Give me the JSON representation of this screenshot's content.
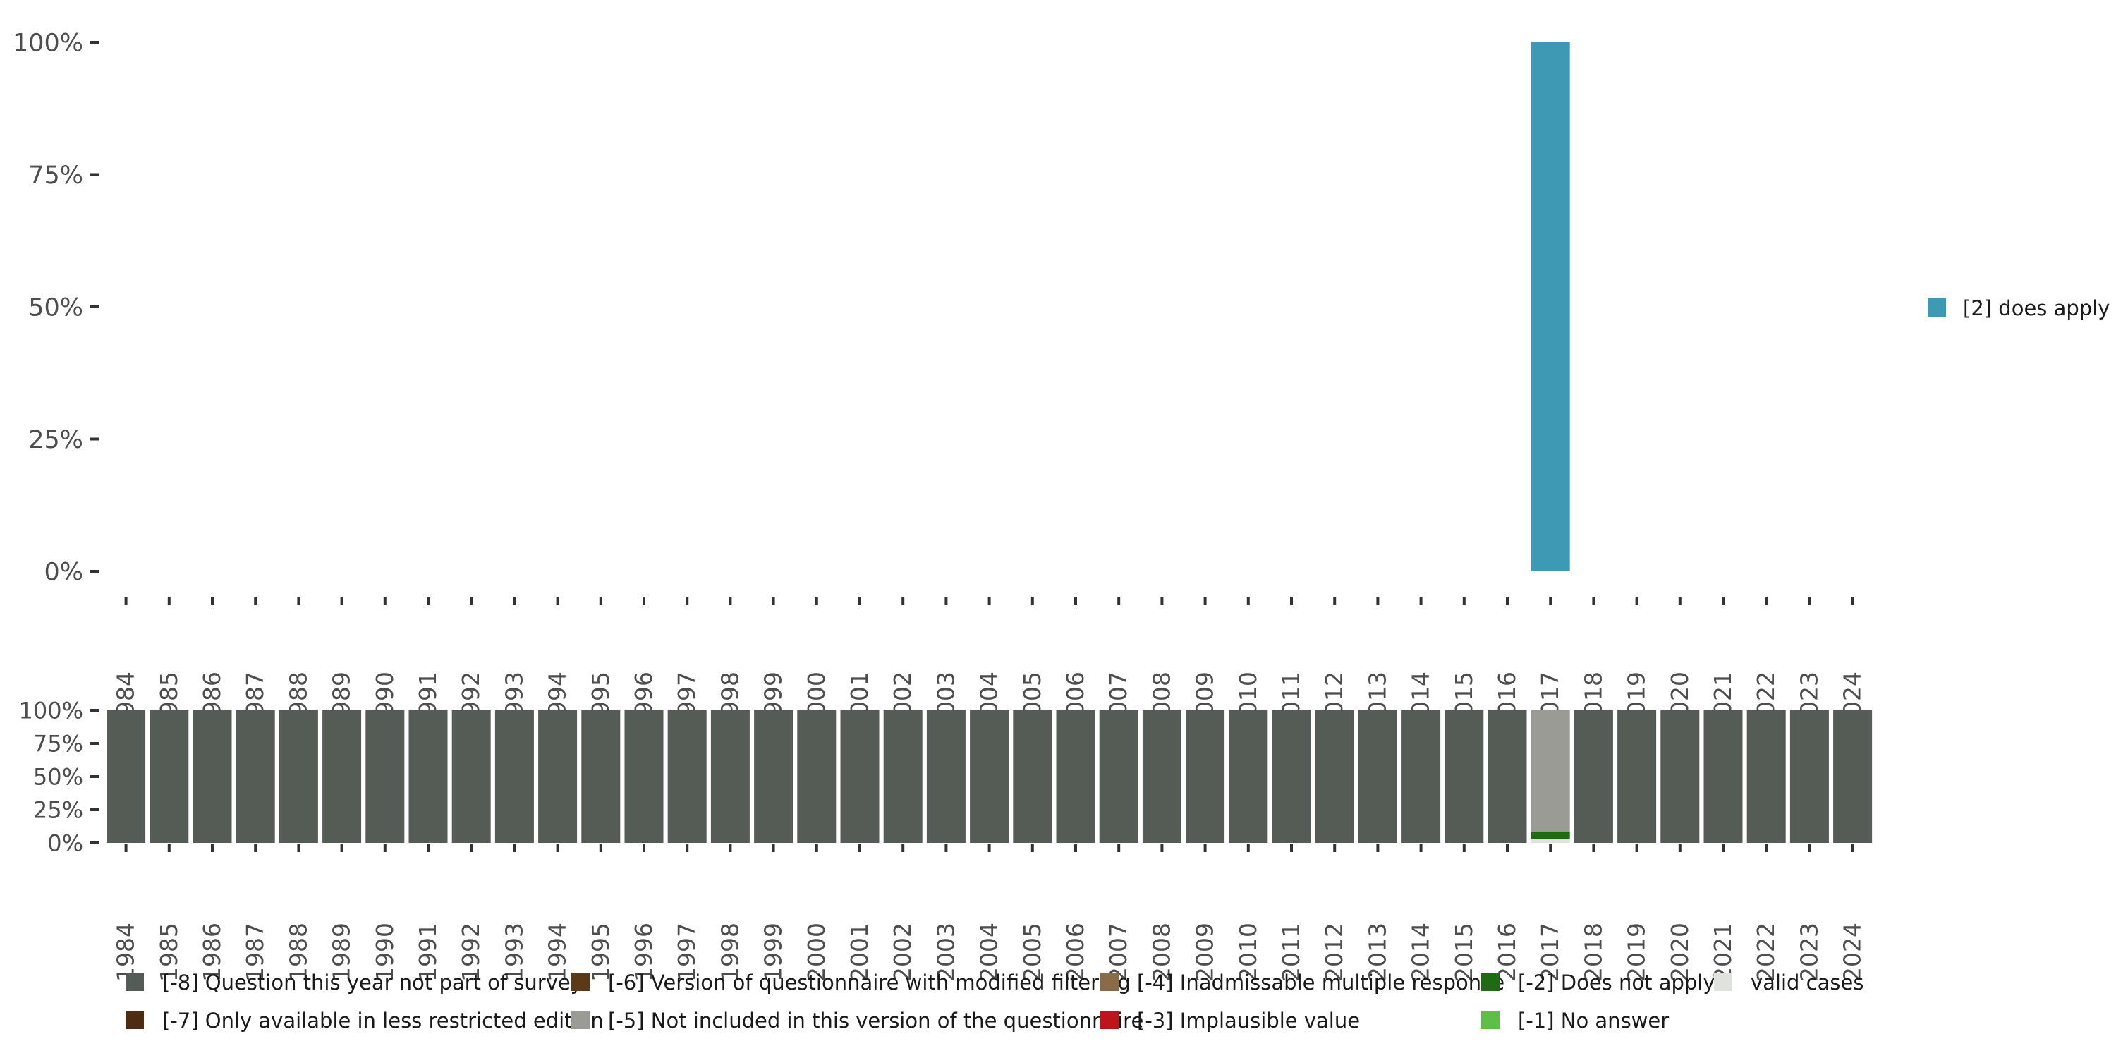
{
  "chart_data": [
    {
      "type": "bar",
      "name": "top-chart",
      "stacked": true,
      "y_tick_labels": [
        "0%",
        "25%",
        "50%",
        "75%",
        "100%"
      ],
      "ylim": [
        0,
        100
      ],
      "categories": [
        "1984",
        "1985",
        "1986",
        "1987",
        "1988",
        "1989",
        "1990",
        "1991",
        "1992",
        "1993",
        "1994",
        "1995",
        "1996",
        "1997",
        "1998",
        "1999",
        "2000",
        "2001",
        "2002",
        "2003",
        "2004",
        "2005",
        "2006",
        "2007",
        "2008",
        "2009",
        "2010",
        "2011",
        "2012",
        "2013",
        "2014",
        "2015",
        "2016",
        "2017",
        "2018",
        "2019",
        "2020",
        "2021",
        "2022",
        "2023",
        "2024"
      ],
      "series": [
        {
          "name": "[2] does apply",
          "color": "#3e9ab4",
          "values": [
            0,
            0,
            0,
            0,
            0,
            0,
            0,
            0,
            0,
            0,
            0,
            0,
            0,
            0,
            0,
            0,
            0,
            0,
            0,
            0,
            0,
            0,
            0,
            0,
            0,
            0,
            0,
            0,
            0,
            0,
            0,
            0,
            0,
            100,
            0,
            0,
            0,
            0,
            0,
            0,
            0
          ]
        }
      ],
      "legend": {
        "position": "right",
        "items": [
          {
            "label": "[2] does apply",
            "color": "#3e9ab4"
          }
        ]
      }
    },
    {
      "type": "bar",
      "name": "bottom-chart",
      "stacked": true,
      "y_tick_labels": [
        "0%",
        "25%",
        "50%",
        "75%",
        "100%"
      ],
      "ylim": [
        0,
        100
      ],
      "categories": [
        "1984",
        "1985",
        "1986",
        "1987",
        "1988",
        "1989",
        "1990",
        "1991",
        "1992",
        "1993",
        "1994",
        "1995",
        "1996",
        "1997",
        "1998",
        "1999",
        "2000",
        "2001",
        "2002",
        "2003",
        "2004",
        "2005",
        "2006",
        "2007",
        "2008",
        "2009",
        "2010",
        "2011",
        "2012",
        "2013",
        "2014",
        "2015",
        "2016",
        "2017",
        "2018",
        "2019",
        "2020",
        "2021",
        "2022",
        "2023",
        "2024"
      ],
      "series": [
        {
          "name": "valid cases",
          "color": "#dfe2dd",
          "values": [
            0,
            0,
            0,
            0,
            0,
            0,
            0,
            0,
            0,
            0,
            0,
            0,
            0,
            0,
            0,
            0,
            0,
            0,
            0,
            0,
            0,
            0,
            0,
            0,
            0,
            0,
            0,
            0,
            0,
            0,
            0,
            0,
            0,
            3,
            0,
            0,
            0,
            0,
            0,
            0,
            0
          ]
        },
        {
          "name": "[-2] Does not apply",
          "color": "#1f6b14",
          "values": [
            0,
            0,
            0,
            0,
            0,
            0,
            0,
            0,
            0,
            0,
            0,
            0,
            0,
            0,
            0,
            0,
            0,
            0,
            0,
            0,
            0,
            0,
            0,
            0,
            0,
            0,
            0,
            0,
            0,
            0,
            0,
            0,
            0,
            5,
            0,
            0,
            0,
            0,
            0,
            0,
            0
          ]
        },
        {
          "name": "[-5] Not included in this version of the questionnaire",
          "color": "#999b94",
          "values": [
            0,
            0,
            0,
            0,
            0,
            0,
            0,
            0,
            0,
            0,
            0,
            0,
            0,
            0,
            0,
            0,
            0,
            0,
            0,
            0,
            0,
            0,
            0,
            0,
            0,
            0,
            0,
            0,
            0,
            0,
            0,
            0,
            0,
            92,
            0,
            0,
            0,
            0,
            0,
            0,
            0
          ]
        },
        {
          "name": "[-8] Question this year not part of survey",
          "color": "#555b55",
          "values": [
            100,
            100,
            100,
            100,
            100,
            100,
            100,
            100,
            100,
            100,
            100,
            100,
            100,
            100,
            100,
            100,
            100,
            100,
            100,
            100,
            100,
            100,
            100,
            100,
            100,
            100,
            100,
            100,
            100,
            100,
            100,
            100,
            100,
            0,
            100,
            100,
            100,
            100,
            100,
            100,
            100
          ]
        }
      ],
      "legend": {
        "position": "bottom",
        "items": [
          {
            "label": "[-8] Question this year not part of survey",
            "color": "#555b55"
          },
          {
            "label": "[-7] Only available in less restricted edition",
            "color": "#4d2c12"
          },
          {
            "label": "[-6] Version of questionnaire with modified filtering",
            "color": "#5c3a17"
          },
          {
            "label": "[-5] Not included in this version of the questionnaire",
            "color": "#999b94"
          },
          {
            "label": "[-4] Inadmissable multiple response",
            "color": "#8b6a48"
          },
          {
            "label": "[-3] Implausible value",
            "color": "#c0141b"
          },
          {
            "label": "[-2] Does not apply",
            "color": "#1f6b14"
          },
          {
            "label": "[-1] No answer",
            "color": "#5dbf45"
          },
          {
            "label": "valid cases",
            "color": "#dfe2dd"
          }
        ]
      }
    }
  ]
}
